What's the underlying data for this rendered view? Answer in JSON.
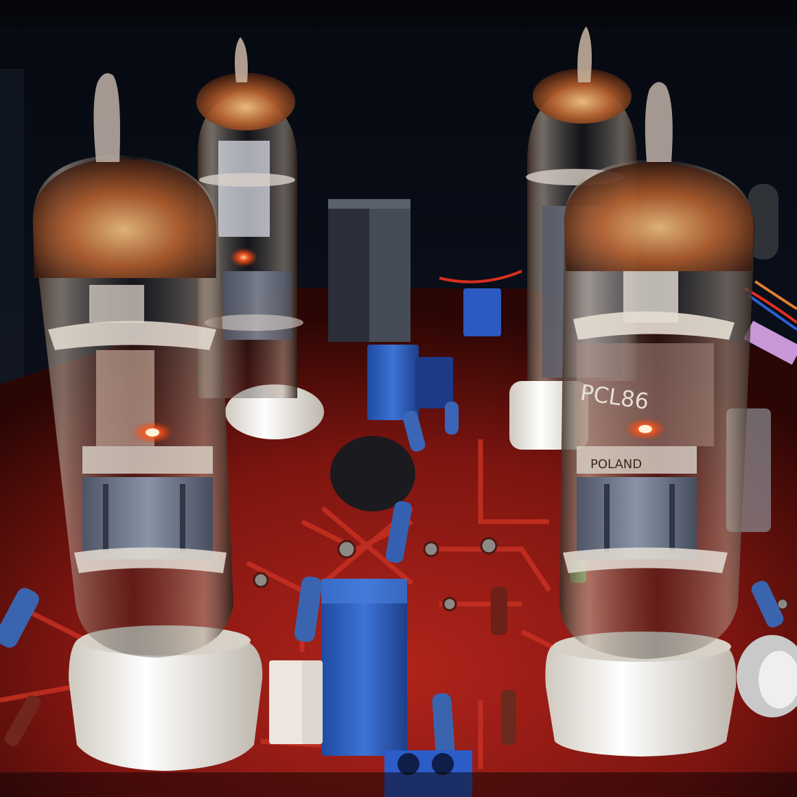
{
  "photo": {
    "subject": "vacuum-tube-amplifier-board",
    "tube_marking_front_right": {
      "type_line": "PCL86",
      "country_line": "POLAND"
    },
    "colors": {
      "background": "#06080f",
      "pcb": "#8e1a14",
      "pcb_trace": "#c42a20",
      "glow": "#ff6a2a",
      "socket": "#f2efe8",
      "capacitor": "#2f63c6",
      "resistor": "#3c63a8"
    }
  }
}
